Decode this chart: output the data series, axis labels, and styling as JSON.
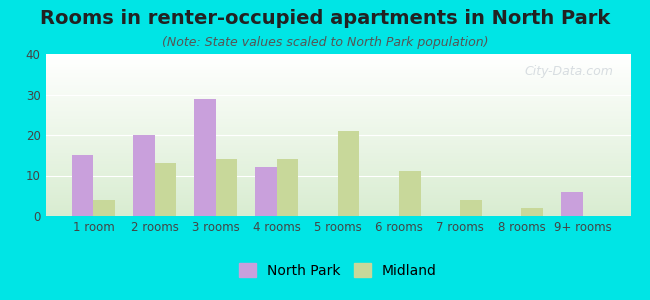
{
  "title": "Rooms in renter-occupied apartments in North Park",
  "subtitle": "(Note: State values scaled to North Park population)",
  "categories": [
    "1 room",
    "2 rooms",
    "3 rooms",
    "4 rooms",
    "5 rooms",
    "6 rooms",
    "7 rooms",
    "8 rooms",
    "9+ rooms"
  ],
  "northpark_values": [
    15,
    20,
    29,
    12,
    0,
    0,
    0,
    0,
    6
  ],
  "midland_values": [
    4,
    13,
    14,
    14,
    21,
    11,
    4,
    2,
    0
  ],
  "northpark_color": "#c9a0dc",
  "midland_color": "#c8d89a",
  "bg_outer": "#00e5e5",
  "bg_plot_top": "#ffffff",
  "bg_plot_bottom": "#d8ecd0",
  "ylim": [
    0,
    40
  ],
  "yticks": [
    0,
    10,
    20,
    30,
    40
  ],
  "bar_width": 0.35,
  "title_fontsize": 14,
  "subtitle_fontsize": 9,
  "tick_fontsize": 8.5,
  "legend_fontsize": 10,
  "watermark_text": "City-Data.com",
  "watermark_color": "#c0c8d0",
  "watermark_alpha": 0.6
}
